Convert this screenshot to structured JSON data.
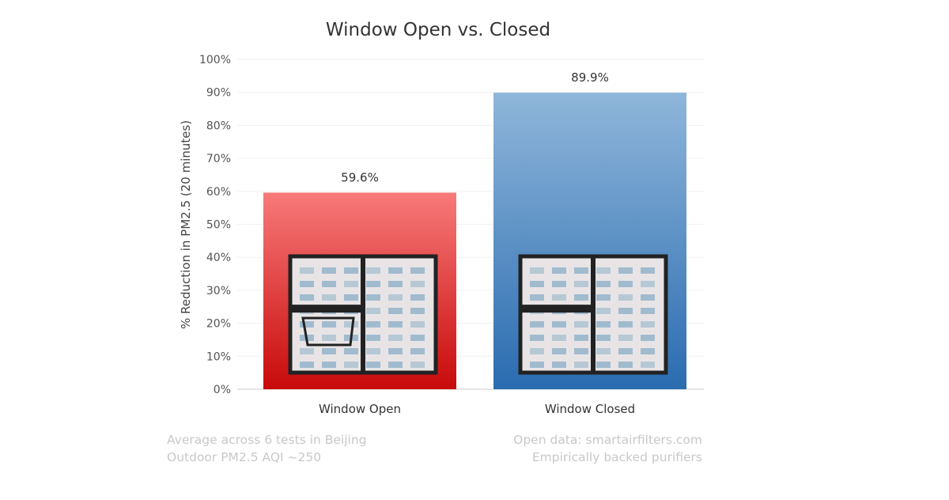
{
  "chart_data": {
    "type": "bar",
    "title": "Window Open vs. Closed",
    "ylabel": "% Reduction in PM2.5 (20 minutes)",
    "xlabel": "",
    "categories": [
      "Window Open",
      "Window Closed"
    ],
    "values": [
      59.6,
      89.9
    ],
    "data_labels": [
      "59.6%",
      "89.9%"
    ],
    "ylim": [
      0,
      100
    ],
    "yticks": [
      0,
      10,
      20,
      30,
      40,
      50,
      60,
      70,
      80,
      90,
      100
    ],
    "ytick_labels": [
      "0%",
      "10%",
      "20%",
      "30%",
      "40%",
      "50%",
      "60%",
      "70%",
      "80%",
      "90%",
      "100%"
    ],
    "grid": true,
    "bar_colors": [
      [
        "#f87a7a",
        "#c80a0a"
      ],
      [
        "#8fb6da",
        "#2a6cb0"
      ]
    ],
    "bar_images": [
      "open-window-photo-icon",
      "closed-window-photo-icon"
    ]
  },
  "footnotes": {
    "left": [
      "Average across 6 tests in Beijing",
      "Outdoor PM2.5 AQI ~250"
    ],
    "right": [
      "Open data: smartairfilters.com",
      "Empirically backed purifiers"
    ]
  }
}
